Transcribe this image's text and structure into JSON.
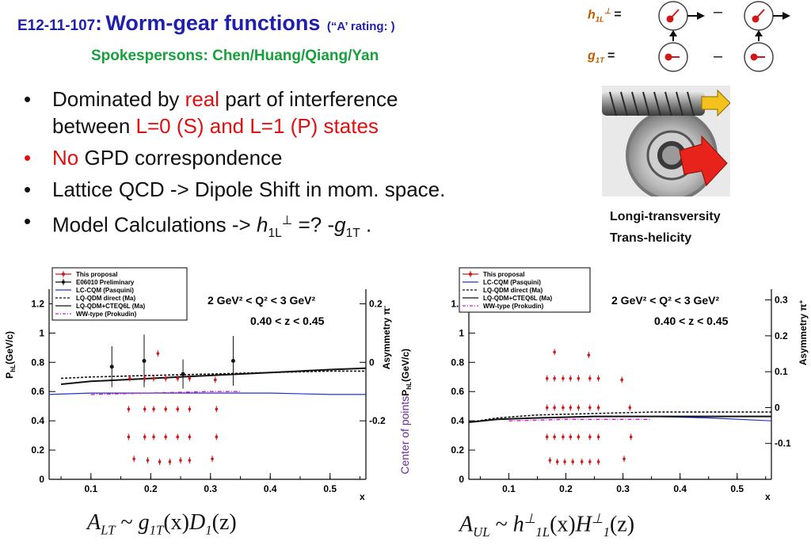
{
  "title": {
    "id": "E12-11-107",
    "colon": ":",
    "main": "Worm-gear functions",
    "rating": "(“A’  rating: )",
    "spokespersons": "Spokespersons: Chen/Huang/Qiang/Yan"
  },
  "diagram": {
    "h_label": "h",
    "h_sub": "1L",
    "h_sup": "⊥",
    "g_label": "g",
    "g_sub": "1T",
    "equals": "=",
    "minus": "–"
  },
  "bullets": [
    {
      "pre": "Dominated by ",
      "red": "real",
      "post": " part of interference",
      "line2_pre": "between ",
      "line2_red": "L=0 (S) and L=1 (P) states"
    },
    {
      "red": "No",
      "post": " GPD correspondence"
    },
    {
      "text": "Lattice  QCD -> Dipole Shift in mom. space."
    },
    {
      "pre": "Model Calculations -> ",
      "h": "h",
      "h_sub": "1L",
      "h_sup": "⊥",
      "mid": " =? -",
      "g": "g",
      "g_sub": "1T",
      "end": " ."
    }
  ],
  "caption": {
    "line1": "Longi-transversity",
    "line2": "Trans-helicity"
  },
  "formulas": {
    "left": {
      "A": "A",
      "A_sub": "LT",
      "rest_pre": " ~ ",
      "g": "g",
      "g_sub": "1T",
      "x": "(x)",
      "D": "D",
      "D_sub": "1",
      "z": "(z)"
    },
    "right": {
      "A": "A",
      "A_sub": "UL",
      "rest_pre": " ~ ",
      "h": "h",
      "h_sup": "⊥",
      "h_sub": "1L",
      "x": "(x)",
      "H": "H",
      "H_sup": "⊥",
      "H_sub": "1",
      "z": "(z)"
    }
  },
  "chart_data": [
    {
      "type": "scatter",
      "ylabel": "P",
      "ylabel_sub": "hL",
      "ylabel_unit": "(GeV/c)",
      "y2label": "Asymmetry π",
      "y2label_sup": "-",
      "xlabel": "x",
      "xlim": [
        0.03,
        0.56
      ],
      "ylim": [
        0,
        1.3
      ],
      "y2lim": [
        -0.4,
        0.25
      ],
      "x_ticks": [
        "0.1",
        "0.2",
        "0.3",
        "0.4",
        "0.5"
      ],
      "y_ticks": [
        "0",
        "0.2",
        "0.4",
        "0.6",
        "0.8",
        "1",
        "1.2"
      ],
      "y2_ticks": [
        "-0.2",
        "0",
        "0.2"
      ],
      "kin_q2": "2 GeV² < Q² < 3 GeV²",
      "kin_z": "0.40 < z < 0.45",
      "legend": [
        "This proposal",
        "E06010 Preliminary",
        "LC-CQM (Pasquini)",
        "LQ-QDM direct (Ma)",
        "LQ-QDM+CTEQ6L (Ma)",
        "WW-type (Prokudin)"
      ],
      "legend_colors": [
        "#d01818",
        "#111111",
        "#2233cc",
        "#111111",
        "#111111",
        "#d018d0"
      ],
      "proposal_points": [
        {
          "x": 0.165,
          "y": 0.69
        },
        {
          "x": 0.19,
          "y": 0.69
        },
        {
          "x": 0.205,
          "y": 0.69
        },
        {
          "x": 0.225,
          "y": 0.69
        },
        {
          "x": 0.245,
          "y": 0.69
        },
        {
          "x": 0.265,
          "y": 0.69
        },
        {
          "x": 0.308,
          "y": 0.68
        },
        {
          "x": 0.212,
          "y": 0.86
        },
        {
          "x": 0.163,
          "y": 0.48
        },
        {
          "x": 0.19,
          "y": 0.48
        },
        {
          "x": 0.205,
          "y": 0.48
        },
        {
          "x": 0.225,
          "y": 0.48
        },
        {
          "x": 0.245,
          "y": 0.48
        },
        {
          "x": 0.265,
          "y": 0.48
        },
        {
          "x": 0.31,
          "y": 0.48
        },
        {
          "x": 0.163,
          "y": 0.29
        },
        {
          "x": 0.19,
          "y": 0.29
        },
        {
          "x": 0.205,
          "y": 0.29
        },
        {
          "x": 0.225,
          "y": 0.29
        },
        {
          "x": 0.245,
          "y": 0.29
        },
        {
          "x": 0.265,
          "y": 0.29
        },
        {
          "x": 0.31,
          "y": 0.29
        },
        {
          "x": 0.172,
          "y": 0.14
        },
        {
          "x": 0.195,
          "y": 0.13
        },
        {
          "x": 0.215,
          "y": 0.12
        },
        {
          "x": 0.232,
          "y": 0.12
        },
        {
          "x": 0.25,
          "y": 0.13
        },
        {
          "x": 0.265,
          "y": 0.13
        },
        {
          "x": 0.303,
          "y": 0.14
        }
      ],
      "e06010_points": [
        {
          "x": 0.135,
          "y": 0.77,
          "err": 0.14
        },
        {
          "x": 0.189,
          "y": 0.81,
          "err": 0.18
        },
        {
          "x": 0.254,
          "y": 0.72,
          "err": 0.1
        },
        {
          "x": 0.338,
          "y": 0.81,
          "err": 0.17
        }
      ],
      "curves": {
        "lc_cqm": [
          [
            0.03,
            0.58
          ],
          [
            0.1,
            0.59
          ],
          [
            0.2,
            0.59
          ],
          [
            0.3,
            0.59
          ],
          [
            0.4,
            0.59
          ],
          [
            0.5,
            0.58
          ],
          [
            0.56,
            0.58
          ]
        ],
        "lq_direct": [
          [
            0.05,
            0.69
          ],
          [
            0.1,
            0.7
          ],
          [
            0.2,
            0.71
          ],
          [
            0.3,
            0.72
          ],
          [
            0.4,
            0.73
          ],
          [
            0.5,
            0.74
          ],
          [
            0.56,
            0.74
          ]
        ],
        "lq_cteq": [
          [
            0.05,
            0.65
          ],
          [
            0.1,
            0.67
          ],
          [
            0.2,
            0.69
          ],
          [
            0.3,
            0.71
          ],
          [
            0.4,
            0.73
          ],
          [
            0.5,
            0.75
          ],
          [
            0.56,
            0.76
          ]
        ],
        "ww": [
          [
            0.1,
            0.58
          ],
          [
            0.2,
            0.59
          ],
          [
            0.3,
            0.6
          ],
          [
            0.35,
            0.6
          ]
        ]
      }
    },
    {
      "type": "scatter",
      "ylabel": "P",
      "ylabel_sub": "hL",
      "ylabel_unit": "(GeV/c)",
      "ylabel_prefix": "Center of points",
      "y2label": "Asymmetry π",
      "y2label_sup": "+",
      "xlabel": "x",
      "xlim": [
        0.03,
        0.56
      ],
      "ylim": [
        0,
        1.3
      ],
      "y2lim": [
        -0.2,
        0.33
      ],
      "x_ticks": [
        "0.1",
        "0.2",
        "0.3",
        "0.4",
        "0.5"
      ],
      "y_ticks": [
        "0",
        "0.2",
        "0.4",
        "0.6",
        "0.8",
        "1",
        "1.2"
      ],
      "y2_ticks": [
        "-0.1",
        "0",
        "0.1",
        "0.2",
        "0.3"
      ],
      "kin_q2": "2 GeV² < Q² < 3 GeV²",
      "kin_z": "0.40 < z < 0.45",
      "legend": [
        "This proposal",
        "LC-CQM (Pasquini)",
        "LQ-QDM direct (Ma)",
        "LQ-QDM+CTEQ6L (Ma)",
        "WW-type (Prokudin)"
      ],
      "legend_colors": [
        "#d01818",
        "#2233cc",
        "#111111",
        "#111111",
        "#d018d0"
      ],
      "proposal_points": [
        {
          "x": 0.18,
          "y": 0.87
        },
        {
          "x": 0.24,
          "y": 0.85
        },
        {
          "x": 0.167,
          "y": 0.69
        },
        {
          "x": 0.18,
          "y": 0.69
        },
        {
          "x": 0.195,
          "y": 0.69
        },
        {
          "x": 0.208,
          "y": 0.69
        },
        {
          "x": 0.222,
          "y": 0.69
        },
        {
          "x": 0.242,
          "y": 0.69
        },
        {
          "x": 0.257,
          "y": 0.69
        },
        {
          "x": 0.298,
          "y": 0.68
        },
        {
          "x": 0.167,
          "y": 0.49
        },
        {
          "x": 0.18,
          "y": 0.49
        },
        {
          "x": 0.195,
          "y": 0.49
        },
        {
          "x": 0.208,
          "y": 0.49
        },
        {
          "x": 0.222,
          "y": 0.49
        },
        {
          "x": 0.242,
          "y": 0.49
        },
        {
          "x": 0.257,
          "y": 0.49
        },
        {
          "x": 0.312,
          "y": 0.49
        },
        {
          "x": 0.167,
          "y": 0.29
        },
        {
          "x": 0.18,
          "y": 0.29
        },
        {
          "x": 0.195,
          "y": 0.29
        },
        {
          "x": 0.208,
          "y": 0.29
        },
        {
          "x": 0.222,
          "y": 0.29
        },
        {
          "x": 0.242,
          "y": 0.29
        },
        {
          "x": 0.257,
          "y": 0.29
        },
        {
          "x": 0.314,
          "y": 0.29
        },
        {
          "x": 0.172,
          "y": 0.13
        },
        {
          "x": 0.185,
          "y": 0.12
        },
        {
          "x": 0.198,
          "y": 0.12
        },
        {
          "x": 0.212,
          "y": 0.12
        },
        {
          "x": 0.228,
          "y": 0.12
        },
        {
          "x": 0.242,
          "y": 0.12
        },
        {
          "x": 0.257,
          "y": 0.12
        },
        {
          "x": 0.302,
          "y": 0.14
        }
      ],
      "curves": {
        "lc_cqm": [
          [
            0.03,
            0.39
          ],
          [
            0.08,
            0.41
          ],
          [
            0.15,
            0.42
          ],
          [
            0.25,
            0.43
          ],
          [
            0.35,
            0.43
          ],
          [
            0.45,
            0.42
          ],
          [
            0.56,
            0.4
          ]
        ],
        "lq_direct": [
          [
            0.03,
            0.39
          ],
          [
            0.08,
            0.42
          ],
          [
            0.15,
            0.44
          ],
          [
            0.25,
            0.45
          ],
          [
            0.35,
            0.46
          ],
          [
            0.45,
            0.46
          ],
          [
            0.56,
            0.46
          ]
        ],
        "lq_cteq": [
          [
            0.03,
            0.39
          ],
          [
            0.08,
            0.41
          ],
          [
            0.15,
            0.42
          ],
          [
            0.25,
            0.43
          ],
          [
            0.35,
            0.43
          ],
          [
            0.45,
            0.43
          ],
          [
            0.56,
            0.43
          ]
        ],
        "ww": [
          [
            0.1,
            0.4
          ],
          [
            0.2,
            0.41
          ],
          [
            0.3,
            0.41
          ],
          [
            0.35,
            0.41
          ]
        ]
      }
    }
  ]
}
